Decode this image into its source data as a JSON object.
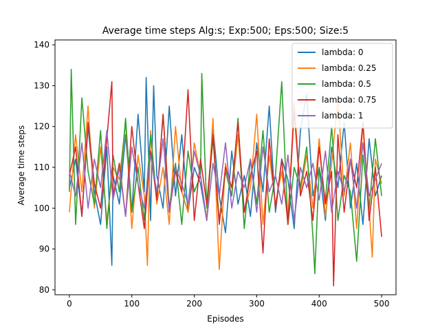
{
  "chart_data": {
    "type": "line",
    "title": "Average time steps Alg:s; Exp:500; Eps:500; Size:5",
    "xlabel": "Episodes",
    "ylabel": "Average time steps",
    "xlim": [
      -23,
      523
    ],
    "ylim": [
      78.8,
      141.2
    ],
    "xticks": [
      0,
      100,
      200,
      300,
      400,
      500
    ],
    "yticks": [
      80,
      90,
      100,
      110,
      120,
      130,
      140
    ],
    "grid": false,
    "legend_position": "top-right",
    "series": [
      {
        "name": "lambda: 0",
        "color": "#1f77b4",
        "x": [
          0,
          10,
          20,
          30,
          40,
          50,
          60,
          68,
          70,
          80,
          90,
          100,
          110,
          120,
          123,
          130,
          135,
          140,
          150,
          160,
          170,
          180,
          190,
          200,
          210,
          220,
          230,
          240,
          250,
          260,
          270,
          280,
          290,
          300,
          310,
          320,
          330,
          340,
          350,
          360,
          370,
          380,
          390,
          400,
          410,
          420,
          430,
          440,
          450,
          460,
          470,
          480,
          490,
          500
        ],
        "y": [
          105,
          112,
          98,
          120,
          104,
          96,
          115,
          86,
          108,
          101,
          118,
          99,
          123,
          104,
          132,
          97,
          130,
          108,
          100,
          125,
          103,
          118,
          99,
          110,
          106,
          97,
          120,
          103,
          94,
          114,
          101,
          108,
          98,
          116,
          104,
          125,
          99,
          112,
          107,
          95,
          119,
          128,
          103,
          110,
          97,
          115,
          105,
          121,
          100,
          111,
          96,
          117,
          103,
          108
        ]
      },
      {
        "name": "lambda: 0.25",
        "color": "#ff7f0e",
        "x": [
          0,
          10,
          20,
          30,
          40,
          50,
          60,
          70,
          80,
          90,
          100,
          110,
          120,
          125,
          130,
          140,
          150,
          160,
          170,
          180,
          190,
          200,
          210,
          220,
          230,
          240,
          250,
          260,
          270,
          280,
          290,
          300,
          310,
          320,
          330,
          340,
          350,
          360,
          370,
          380,
          390,
          400,
          410,
          420,
          430,
          440,
          450,
          460,
          470,
          480,
          485,
          490,
          500
        ],
        "y": [
          99,
          118,
          104,
          125,
          100,
          115,
          97,
          110,
          107,
          121,
          95,
          113,
          103,
          86,
          119,
          101,
          110,
          96,
          120,
          104,
          99,
          116,
          108,
          97,
          122,
          85,
          111,
          103,
          118,
          99,
          105,
          123,
          96,
          113,
          101,
          109,
          97,
          126,
          104,
          113,
          100,
          117,
          98,
          111,
          127,
          103,
          116,
          95,
          121,
          100,
          88,
          112,
          106
        ]
      },
      {
        "name": "lambda: 0.5",
        "color": "#2ca02c",
        "x": [
          0,
          3,
          10,
          20,
          30,
          40,
          50,
          60,
          70,
          80,
          90,
          100,
          110,
          120,
          130,
          140,
          150,
          160,
          170,
          180,
          190,
          200,
          210,
          212,
          220,
          230,
          240,
          250,
          260,
          270,
          280,
          290,
          300,
          310,
          320,
          330,
          340,
          350,
          360,
          370,
          380,
          390,
          393,
          400,
          410,
          420,
          430,
          440,
          450,
          460,
          470,
          480,
          490,
          500
        ],
        "y": [
          104,
          134,
          96,
          127,
          109,
          101,
          119,
          95,
          113,
          104,
          122,
          99,
          110,
          97,
          118,
          102,
          123,
          100,
          111,
          96,
          114,
          104,
          108,
          133,
          100,
          117,
          97,
          109,
          103,
          122,
          95,
          112,
          101,
          119,
          99,
          108,
          131,
          96,
          110,
          105,
          115,
          93,
          84,
          110,
          102,
          120,
          97,
          108,
          104,
          87,
          113,
          100,
          117,
          103
        ]
      },
      {
        "name": "lambda: 0.75",
        "color": "#d62728",
        "x": [
          0,
          10,
          20,
          30,
          40,
          50,
          60,
          68,
          70,
          80,
          90,
          100,
          110,
          120,
          130,
          140,
          150,
          160,
          170,
          180,
          190,
          200,
          210,
          220,
          230,
          240,
          250,
          260,
          270,
          280,
          290,
          300,
          310,
          320,
          330,
          340,
          350,
          360,
          370,
          380,
          390,
          400,
          410,
          420,
          423,
          430,
          440,
          450,
          460,
          470,
          480,
          490,
          500
        ],
        "y": [
          108,
          115,
          98,
          121,
          106,
          100,
          117,
          131,
          103,
          111,
          98,
          120,
          106,
          95,
          114,
          102,
          123,
          99,
          109,
          104,
          129,
          97,
          112,
          101,
          118,
          96,
          110,
          105,
          121,
          99,
          108,
          114,
          89,
          117,
          100,
          112,
          96,
          124,
          103,
          109,
          97,
          115,
          101,
          109,
          81,
          118,
          99,
          112,
          105,
          121,
          97,
          110,
          93
        ]
      },
      {
        "name": "lambda: 1",
        "color": "#9467bd",
        "x": [
          0,
          10,
          20,
          30,
          40,
          50,
          60,
          70,
          80,
          90,
          100,
          110,
          120,
          130,
          140,
          150,
          160,
          170,
          180,
          190,
          200,
          210,
          220,
          230,
          240,
          250,
          260,
          270,
          280,
          290,
          300,
          310,
          320,
          330,
          340,
          350,
          360,
          370,
          380,
          390,
          400,
          410,
          420,
          430,
          440,
          450,
          460,
          470,
          480,
          490,
          500
        ],
        "y": [
          109,
          103,
          116,
          100,
          112,
          105,
          119,
          102,
          110,
          98,
          115,
          106,
          100,
          113,
          104,
          117,
          99,
          110,
          106,
          101,
          114,
          108,
          97,
          111,
          103,
          116,
          100,
          109,
          105,
          112,
          99,
          115,
          104,
          108,
          101,
          113,
          97,
          110,
          105,
          111,
          102,
          114,
          99,
          109,
          104,
          112,
          100,
          116,
          103,
          107,
          111
        ]
      }
    ]
  }
}
